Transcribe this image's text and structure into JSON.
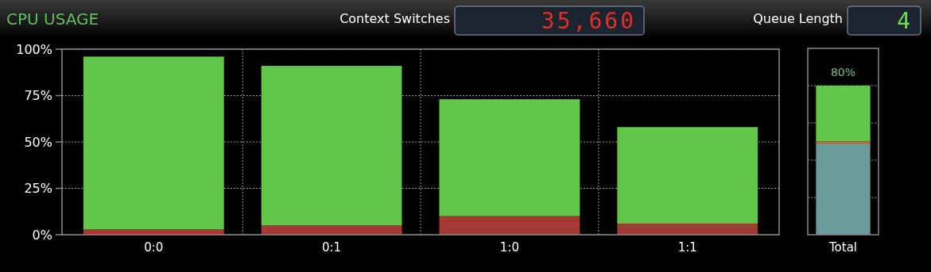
{
  "chart_data": [
    {
      "type": "other",
      "title": "CPU USAGE",
      "annotations": [
        "Context Switches",
        "35,660",
        "Queue Length",
        "4"
      ]
    },
    {
      "type": "bar",
      "stacked": true,
      "categories": [
        "0:0",
        "0:1",
        "1:0",
        "1:1"
      ],
      "series": [
        {
          "color": "#a33a33",
          "values": [
            3,
            5,
            10,
            6
          ]
        },
        {
          "color": "#62c64a",
          "values": [
            93,
            86,
            63,
            52
          ]
        }
      ],
      "ylim": [
        0,
        100
      ],
      "yticks": [
        {
          "value": 0,
          "label": "0%"
        },
        {
          "value": 25,
          "label": "25%"
        },
        {
          "value": 50,
          "label": "50%"
        },
        {
          "value": 75,
          "label": "75%"
        },
        {
          "value": 100,
          "label": "100%"
        }
      ],
      "grid": true
    },
    {
      "type": "bar",
      "stacked": true,
      "categories": [
        "Total"
      ],
      "series": [
        {
          "color": "#6a9a9a",
          "values": [
            49
          ]
        },
        {
          "color": "#e0603a",
          "values": [
            1
          ]
        },
        {
          "color": "#62c64a",
          "values": [
            30
          ]
        }
      ],
      "totals": [
        "80%"
      ],
      "ylim": [
        0,
        100
      ],
      "yticks": [
        {
          "value": 20,
          "label": null
        },
        {
          "value": 40,
          "label": null
        },
        {
          "value": 60,
          "label": null
        },
        {
          "value": 80,
          "label": null
        }
      ],
      "tick_labels": "x",
      "grid": "y"
    }
  ]
}
